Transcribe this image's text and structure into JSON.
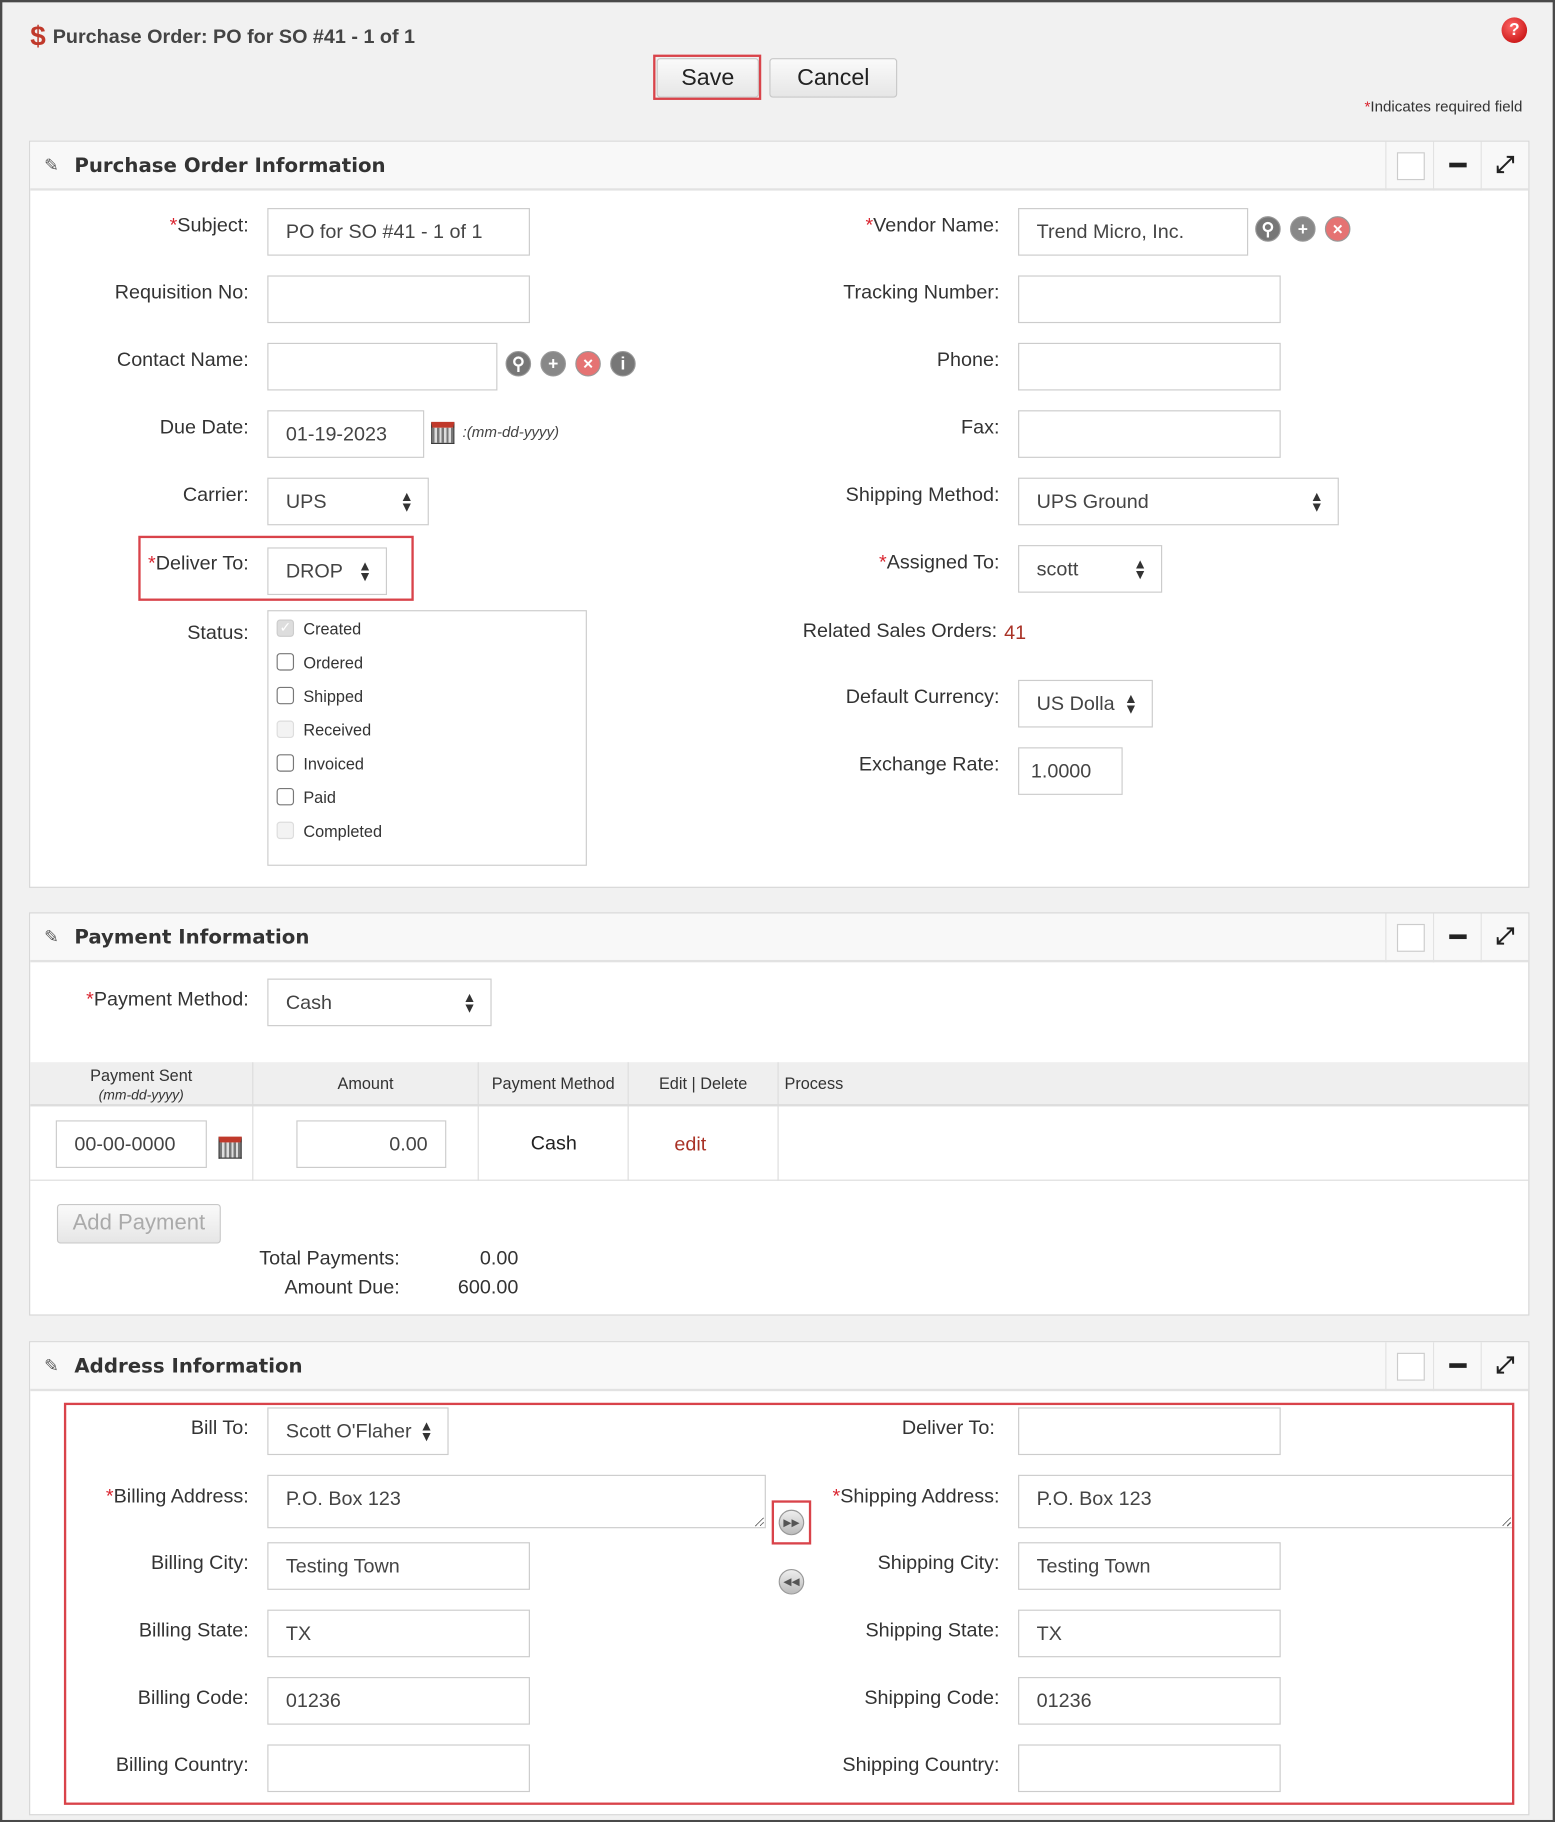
{
  "header": {
    "icon": "dollar-icon",
    "title": "Purchase Order: PO for SO #41 - 1 of 1",
    "save": "Save",
    "cancel": "Cancel",
    "required_note": "Indicates required field",
    "required_mark": "*",
    "help_icon": "help-icon"
  },
  "po_info": {
    "title": "Purchase Order Information",
    "subject": {
      "label": "Subject:",
      "value": "PO for SO #41 - 1 of 1",
      "required": true
    },
    "requisition": {
      "label": "Requisition No:",
      "value": ""
    },
    "contact": {
      "label": "Contact Name:",
      "value": ""
    },
    "due_date": {
      "label": "Due Date:",
      "value": "01-19-2023",
      "format": ":(mm-dd-yyyy)"
    },
    "carrier": {
      "label": "Carrier:",
      "value": "UPS"
    },
    "deliver_to": {
      "label": "Deliver To:",
      "value": "DROP",
      "required": true
    },
    "status": {
      "label": "Status:",
      "options": [
        {
          "label": "Created",
          "checked": true,
          "disabled": true
        },
        {
          "label": "Ordered",
          "checked": false,
          "disabled": false
        },
        {
          "label": "Shipped",
          "checked": false,
          "disabled": false
        },
        {
          "label": "Received",
          "checked": false,
          "disabled": true
        },
        {
          "label": "Invoiced",
          "checked": false,
          "disabled": false
        },
        {
          "label": "Paid",
          "checked": false,
          "disabled": false
        },
        {
          "label": "Completed",
          "checked": false,
          "disabled": true
        }
      ]
    },
    "vendor": {
      "label": "Vendor Name:",
      "value": "Trend Micro, Inc.",
      "required": true
    },
    "tracking": {
      "label": "Tracking Number:",
      "value": ""
    },
    "phone": {
      "label": "Phone:",
      "value": ""
    },
    "fax": {
      "label": "Fax:",
      "value": ""
    },
    "shipping_method": {
      "label": "Shipping Method:",
      "value": "UPS Ground"
    },
    "assigned_to": {
      "label": "Assigned To:",
      "value": "scott",
      "required": true
    },
    "related_so": {
      "label": "Related Sales Orders:",
      "value": "41"
    },
    "currency": {
      "label": "Default Currency:",
      "value": "US Dolla"
    },
    "exchange_rate": {
      "label": "Exchange Rate:",
      "value": "1.0000"
    }
  },
  "payment": {
    "title": "Payment Information",
    "method": {
      "label": "Payment Method:",
      "value": "Cash",
      "required": true
    },
    "columns": [
      "Payment Sent",
      "Amount",
      "Payment Method",
      "Edit | Delete",
      "Process"
    ],
    "date_format": "(mm-dd-yyyy)",
    "row": {
      "date": "00-00-0000",
      "amount": "0.00",
      "method": "Cash",
      "edit": "edit"
    },
    "add_payment": "Add Payment",
    "total_label": "Total Payments:",
    "total": "0.00",
    "due_label": "Amount Due:",
    "due": "600.00"
  },
  "address": {
    "title": "Address Information",
    "bill_to": {
      "label": "Bill To:",
      "value": "Scott O'Flaher"
    },
    "billing_address": {
      "label": "Billing Address:",
      "value": "P.O. Box 123",
      "required": true
    },
    "billing_city": {
      "label": "Billing City:",
      "value": "Testing Town"
    },
    "billing_state": {
      "label": "Billing State:",
      "value": "TX"
    },
    "billing_code": {
      "label": "Billing Code:",
      "value": "01236"
    },
    "billing_country": {
      "label": "Billing Country:",
      "value": ""
    },
    "deliver_to": {
      "label": "Deliver To:",
      "value": ""
    },
    "shipping_address": {
      "label": "Shipping Address:",
      "value": "P.O. Box 123",
      "required": true
    },
    "shipping_city": {
      "label": "Shipping City:",
      "value": "Testing Town"
    },
    "shipping_state": {
      "label": "Shipping State:",
      "value": "TX"
    },
    "shipping_code": {
      "label": "Shipping Code:",
      "value": "01236"
    },
    "shipping_country": {
      "label": "Shipping Country:",
      "value": ""
    }
  },
  "colors": {
    "accent": "#d9434a",
    "link": "#a93226",
    "required": "#d9232e"
  }
}
